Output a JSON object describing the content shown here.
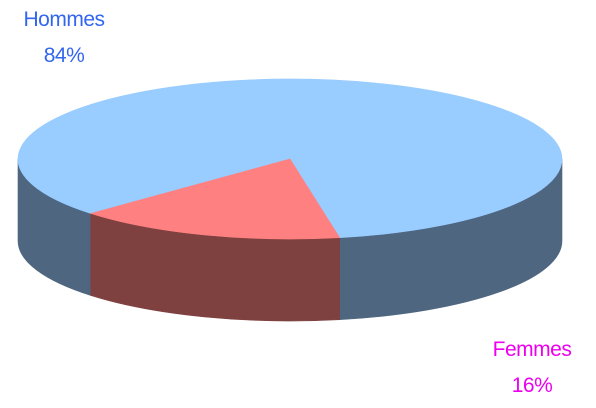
{
  "chart_data": {
    "type": "pie",
    "three_d": true,
    "legend": "none",
    "slices": [
      {
        "label": "Hommes",
        "value": 84,
        "value_label": "84%",
        "color": "#99ccff",
        "side_color": "#4f6680",
        "label_color": "#3366ee"
      },
      {
        "label": "Femmes",
        "value": 16,
        "value_label": "16%",
        "color": "#ff8080",
        "side_color": "#7f4040",
        "label_color": "#ee00ee"
      }
    ]
  }
}
